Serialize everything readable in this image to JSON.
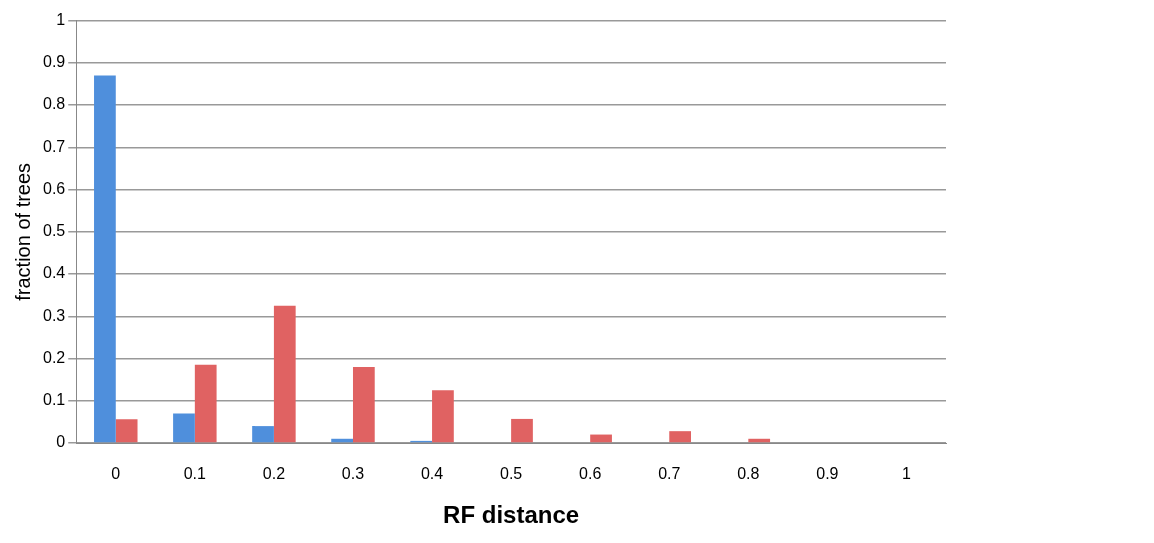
{
  "chart_data": {
    "type": "bar",
    "xlabel": "RF distance",
    "ylabel": "fraction of trees",
    "categories": [
      "0",
      "0.1",
      "0.2",
      "0.3",
      "0.4",
      "0.5",
      "0.6",
      "0.7",
      "0.8",
      "0.9",
      "1"
    ],
    "series": [
      {
        "color": "#4f8fdc",
        "values": [
          0.87,
          0.07,
          0.04,
          0.01,
          0.005,
          0,
          0,
          0,
          0,
          0,
          0
        ]
      },
      {
        "color": "#e06262",
        "values": [
          0.056,
          0.185,
          0.325,
          0.18,
          0.125,
          0.057,
          0.02,
          0.028,
          0.01,
          0,
          0
        ]
      }
    ],
    "ylim": [
      0,
      1
    ],
    "yticks": [
      0,
      0.1,
      0.2,
      0.3,
      0.4,
      0.5,
      0.6,
      0.7,
      0.8,
      0.9,
      1
    ],
    "grid": "y"
  }
}
